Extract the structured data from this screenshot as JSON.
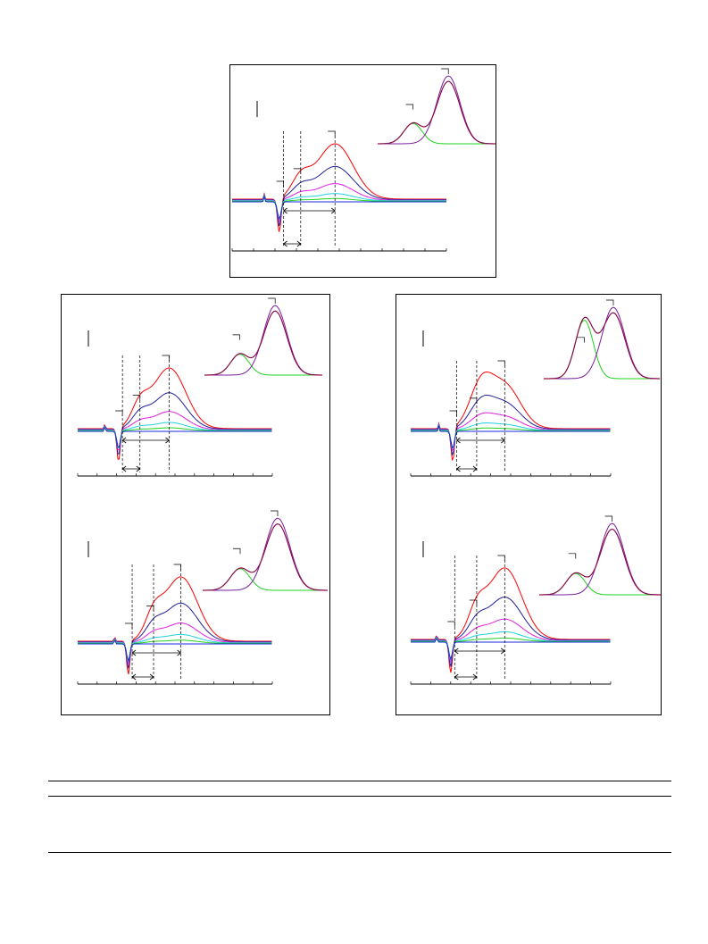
{
  "colors": {
    "red": "#ff0000",
    "navy": "#1f1f9a",
    "magenta": "#e020e0",
    "cyan": "#20d0e0",
    "green": "#20d020",
    "purple": "#7a1fa0",
    "blue": "#1a2adc",
    "axis": "#000000"
  },
  "figure": {
    "panels": [
      {
        "id": "top",
        "peak_pos": 0.48,
        "shoulder_pos": 0.32,
        "pre_pos": 0.24,
        "mode": "single"
      },
      {
        "id": "mid-left",
        "peak_pos": 0.47,
        "shoulder_pos": 0.32,
        "pre_pos": 0.23,
        "mode": "single"
      },
      {
        "id": "bottom-left",
        "peak_pos": 0.53,
        "shoulder_pos": 0.39,
        "pre_pos": 0.28,
        "mode": "single"
      },
      {
        "id": "mid-right",
        "peak_pos": 0.47,
        "shoulder_pos": 0.33,
        "pre_pos": 0.23,
        "mode": "double"
      },
      {
        "id": "bottom-right",
        "peak_pos": 0.47,
        "shoulder_pos": 0.33,
        "pre_pos": 0.22,
        "mode": "single"
      }
    ]
  }
}
